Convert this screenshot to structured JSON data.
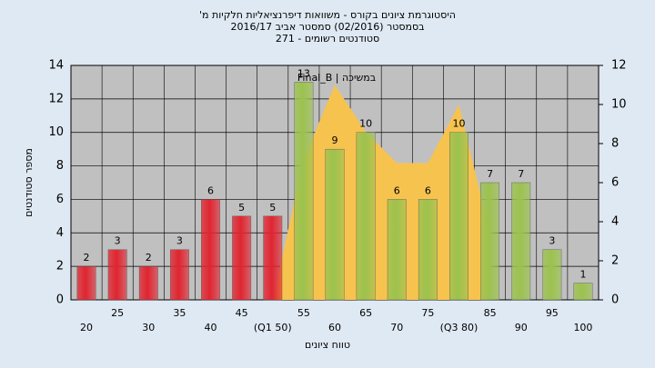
{
  "chart_data": {
    "type": "bar",
    "title_lines": [
      "היסטוגרמת ציונים בקורס - משוואות דיפרנציאליות חלקיות מ'",
      "בסמסטר (02/2016)  סמסטר אביב 2016/17",
      "סטודנטים רשומים - 271"
    ],
    "y_label": "מספר סטודנטים",
    "x_label": "טווח ציונים",
    "legend_text": "Final_B | במשיכה",
    "categories": [
      "20",
      "25",
      "30",
      "35",
      "40",
      "45",
      "(Q1 50)",
      "55",
      "60",
      "65",
      "70",
      "75",
      "(Q3 80)",
      "85",
      "90",
      "95",
      "100"
    ],
    "series": [
      {
        "values": [
          2,
          3,
          2,
          3,
          6,
          5,
          5,
          13,
          9,
          10,
          6,
          6,
          10,
          7,
          7,
          3,
          1
        ],
        "colors": [
          "#e02530",
          "#e02530",
          "#e02530",
          "#e02530",
          "#e02530",
          "#e02530",
          "#e02530",
          "#9cc24e",
          "#9cc24e",
          "#9cc24e",
          "#9cc24e",
          "#9cc24e",
          "#9cc24e",
          "#9cc24e",
          "#9cc24e",
          "#9cc24e",
          "#9cc24e"
        ]
      },
      {
        "type": "area",
        "axis": "y2",
        "color": "#f7c34f",
        "values": [
          null,
          null,
          null,
          null,
          null,
          null,
          0,
          7.2,
          11,
          8.6,
          7,
          7,
          10,
          3.4,
          null,
          null,
          null
        ]
      }
    ],
    "ylim": [
      0,
      14
    ],
    "yticks": [
      0,
      2,
      4,
      6,
      8,
      10,
      12,
      14
    ],
    "y2lim": [
      0,
      12
    ],
    "y2ticks": [
      0,
      2,
      4,
      6,
      8,
      10,
      12
    ],
    "grid": true
  }
}
